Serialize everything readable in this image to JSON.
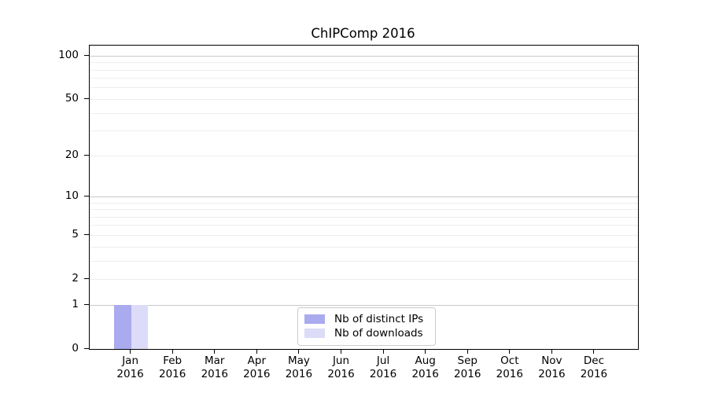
{
  "chart_data": {
    "type": "bar",
    "title": "ChIPComp 2016",
    "categories": [
      "Jan",
      "Feb",
      "Mar",
      "Apr",
      "May",
      "Jun",
      "Jul",
      "Aug",
      "Sep",
      "Oct",
      "Nov",
      "Dec"
    ],
    "category_year": "2016",
    "series": [
      {
        "name": "Nb of distinct IPs",
        "color": "#aaaaee",
        "values": [
          1,
          0,
          0,
          0,
          0,
          0,
          0,
          0,
          0,
          0,
          0,
          0
        ]
      },
      {
        "name": "Nb of downloads",
        "color": "#dcdcf8",
        "values": [
          1,
          0,
          0,
          0,
          0,
          0,
          0,
          0,
          0,
          0,
          0,
          0
        ]
      }
    ],
    "yticks": [
      0,
      1,
      2,
      5,
      10,
      20,
      50,
      100
    ],
    "major_gridlines": [
      1,
      10,
      100
    ],
    "minor_gridlines": [
      2,
      3,
      4,
      5,
      6,
      7,
      8,
      9,
      20,
      30,
      40,
      50,
      60,
      70,
      80,
      90
    ],
    "scale": "log1p",
    "ylim": [
      0,
      118
    ],
    "xlabel": "",
    "ylabel": "",
    "grid": "horizontal",
    "legend_position": "lower-center-inside"
  }
}
